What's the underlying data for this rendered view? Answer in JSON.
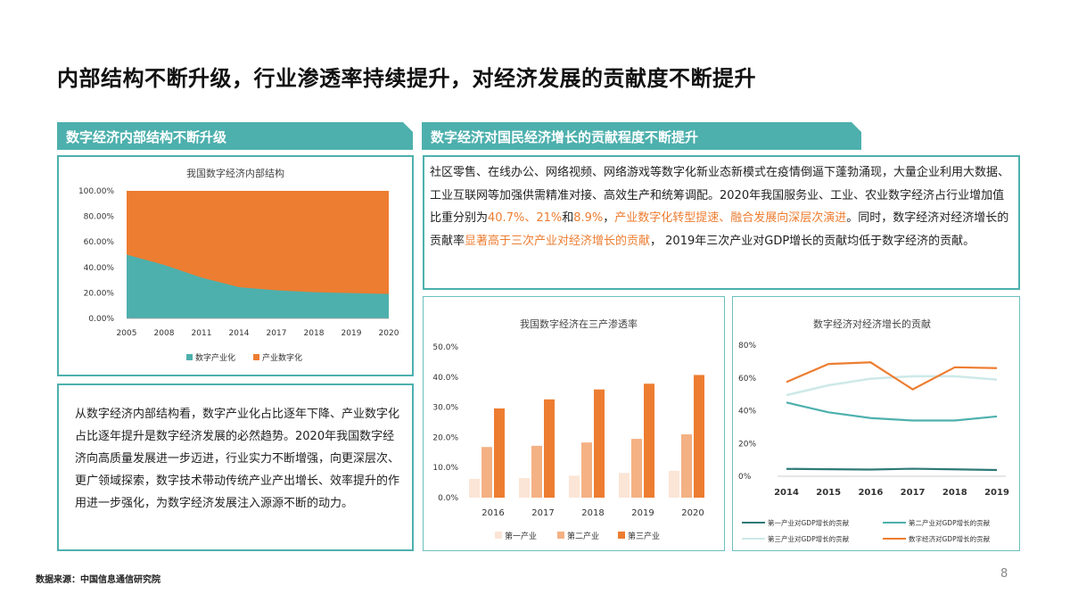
{
  "title": "内部结构不断升级，行业渗透率持续提升，对经济发展的贡献度不断提升",
  "left_tab": "数字经济内部结构不断升级",
  "right_tab": "数字经济对国民经济增长的贡献程度不断提升",
  "right_paragraph": {
    "p1": "社区零售、在线办公、网络视频、网络游戏等数字化新业态新模式在疫情倒逼下蓬勃涌现，大量企业利用大数据、工业互联网等加强供需精准对接、高效生产和统筹调配。2020年我国服务业、工业、农业数字经济占行业增加值比重分别为",
    "h1": "40.7%、21%",
    "p2": "和",
    "h2": "8.9%",
    "p3": "，",
    "h3": "产业数字化转型提速、融合发展向深层次演进",
    "p4": "。同时，数字经济对经济增长的贡献率",
    "h4": "显著高于三次产业对经济增长的贡献",
    "p5": "， 2019年三次产业对GDP增长的贡献均低于数字经济的贡献。"
  },
  "left_paragraph": "从数字经济内部结构看，数字产业化占比逐年下降、产业数字化占比逐年提升是数字经济发展的必然趋势。2020年我国数字经济向高质量发展进一步迈进，行业实力不断增强，向更深层次、更广领域探索，数字技术带动传统产业产出增长、效率提升的作用进一步强化，为数字经济发展注入源源不断的动力。",
  "footer": {
    "source": "数据来源：中国信息通信研究院",
    "page": "8"
  },
  "colors": {
    "teal": "#4db0ad",
    "orange": "#ed7d31",
    "light_orange": "#f4b183",
    "pale_orange": "#fbe5d6",
    "dark_teal": "#2e7a78",
    "light_teal": "#cde9e8"
  },
  "chart_data": [
    {
      "type": "area",
      "title": "我国数字经济内部结构",
      "categories": [
        "2005",
        "2008",
        "2011",
        "2014",
        "2017",
        "2018",
        "2019",
        "2020"
      ],
      "series": [
        {
          "name": "数字产业化",
          "values": [
            50.0,
            42.0,
            32.0,
            24.5,
            22.0,
            20.5,
            19.8,
            19.1
          ]
        },
        {
          "name": "产业数字化",
          "values": [
            50.0,
            58.0,
            68.0,
            75.5,
            78.0,
            79.5,
            80.2,
            80.9
          ]
        }
      ],
      "ylim": [
        0,
        100
      ],
      "yticks": [
        "0.00%",
        "20.00%",
        "40.00%",
        "60.00%",
        "80.00%",
        "100.00%"
      ],
      "legend": "bottom"
    },
    {
      "type": "bar",
      "title": "我国数字经济在三产渗透率",
      "categories": [
        "2016",
        "2017",
        "2018",
        "2019",
        "2020"
      ],
      "series": [
        {
          "name": "第一产业",
          "values": [
            6.2,
            6.5,
            7.3,
            8.2,
            8.9
          ]
        },
        {
          "name": "第二产业",
          "values": [
            16.8,
            17.2,
            18.3,
            19.5,
            21.0
          ]
        },
        {
          "name": "第三产业",
          "values": [
            29.6,
            32.6,
            35.9,
            37.8,
            40.7
          ]
        }
      ],
      "ylim": [
        0,
        50
      ],
      "yticks": [
        "0.0%",
        "10.0%",
        "20.0%",
        "30.0%",
        "40.0%",
        "50.0%"
      ],
      "legend": "bottom"
    },
    {
      "type": "line",
      "title": "数字经济对经济增长的贡献",
      "categories": [
        "2014",
        "2015",
        "2016",
        "2017",
        "2018",
        "2019"
      ],
      "series": [
        {
          "name": "第一产业对GDP增长的贡献",
          "values": [
            4.5,
            4.3,
            4.1,
            4.6,
            4.2,
            3.8
          ]
        },
        {
          "name": "第二产业对GDP增长的贡献",
          "values": [
            45.0,
            39.0,
            35.5,
            34.0,
            34.0,
            36.5
          ]
        },
        {
          "name": "第三产业对GDP增长的贡献",
          "values": [
            49.5,
            55.5,
            59.5,
            61.0,
            61.0,
            59.0
          ]
        },
        {
          "name": "数字经济对GDP增长的贡献",
          "values": [
            57.5,
            68.5,
            69.5,
            53.0,
            66.5,
            66.0
          ]
        }
      ],
      "ylim": [
        0,
        80
      ],
      "yticks": [
        "0%",
        "20%",
        "40%",
        "60%",
        "80%"
      ],
      "legend": "bottom"
    }
  ]
}
